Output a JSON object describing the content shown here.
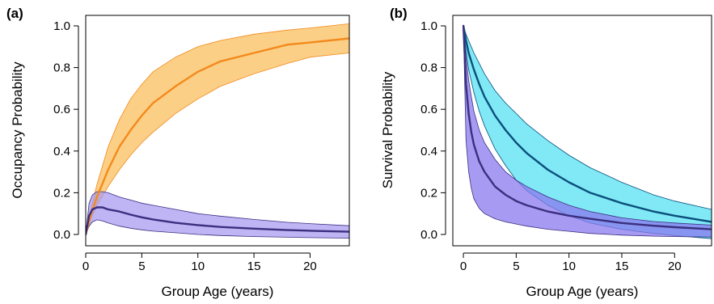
{
  "chart_data": [
    {
      "type": "line",
      "panel_label": "(a)",
      "xlabel": "Group Age (years)",
      "ylabel": "Occupancy Probability",
      "xlim": [
        0,
        23.5
      ],
      "ylim": [
        0,
        1.0
      ],
      "x_ticks": [
        0,
        5,
        10,
        15,
        20
      ],
      "y_ticks": [
        0.0,
        0.2,
        0.4,
        0.6,
        0.8,
        1.0
      ],
      "x_tick_labels": [
        "0",
        "5",
        "10",
        "15",
        "20"
      ],
      "y_tick_labels": [
        "0.0",
        "0.2",
        "0.4",
        "0.6",
        "0.8",
        "1.0"
      ],
      "grid": false,
      "series": [
        {
          "color": "#f28a1c",
          "band_color": "#fbbf5e",
          "x": [
            0,
            0.5,
            1,
            2,
            3,
            4,
            5,
            6,
            8,
            10,
            12,
            15,
            18,
            20,
            23.5
          ],
          "mean": [
            0.0,
            0.1,
            0.18,
            0.31,
            0.42,
            0.5,
            0.57,
            0.63,
            0.71,
            0.78,
            0.83,
            0.87,
            0.91,
            0.92,
            0.94
          ],
          "upper": [
            0.0,
            0.13,
            0.24,
            0.42,
            0.55,
            0.65,
            0.72,
            0.78,
            0.85,
            0.9,
            0.93,
            0.96,
            0.98,
            0.99,
            1.01
          ],
          "lower": [
            0.0,
            0.08,
            0.14,
            0.23,
            0.31,
            0.38,
            0.44,
            0.49,
            0.58,
            0.65,
            0.71,
            0.77,
            0.82,
            0.85,
            0.87
          ]
        },
        {
          "color": "#3b2f7f",
          "band_color": "#a99bf0",
          "x": [
            0,
            0.3,
            0.6,
            1,
            1.5,
            2,
            3,
            4,
            5,
            6,
            8,
            10,
            12,
            15,
            18,
            20,
            23.5
          ],
          "mean": [
            0.0,
            0.09,
            0.12,
            0.13,
            0.13,
            0.12,
            0.11,
            0.095,
            0.082,
            0.072,
            0.056,
            0.045,
            0.036,
            0.028,
            0.021,
            0.018,
            0.013
          ],
          "upper": [
            0.0,
            0.15,
            0.19,
            0.205,
            0.205,
            0.2,
            0.18,
            0.165,
            0.15,
            0.14,
            0.12,
            0.1,
            0.088,
            0.072,
            0.058,
            0.052,
            0.042
          ],
          "lower": [
            0.0,
            0.04,
            0.06,
            0.07,
            0.065,
            0.055,
            0.04,
            0.03,
            0.022,
            0.016,
            0.008,
            0.0,
            -0.005,
            -0.01,
            -0.013,
            -0.015,
            -0.018
          ]
        }
      ]
    },
    {
      "type": "line",
      "panel_label": "(b)",
      "xlabel": "Group Age (years)",
      "ylabel": "Survival Probability",
      "xlim": [
        -1,
        23.5
      ],
      "ylim": [
        0,
        1.0
      ],
      "x_ticks": [
        0,
        5,
        10,
        15,
        20
      ],
      "y_ticks": [
        0.0,
        0.2,
        0.4,
        0.6,
        0.8,
        1.0
      ],
      "x_tick_labels": [
        "0",
        "5",
        "10",
        "15",
        "20"
      ],
      "y_tick_labels": [
        "0.0",
        "0.2",
        "0.4",
        "0.6",
        "0.8",
        "1.0"
      ],
      "grid": false,
      "series": [
        {
          "color": "#0b4f7c",
          "band_color": "#55e2f2",
          "edge_color": "#0b4f7c",
          "x": [
            0,
            0.25,
            0.5,
            1,
            1.5,
            2,
            3,
            4,
            5,
            6,
            8,
            10,
            12,
            15,
            18,
            20,
            23.5
          ],
          "mean": [
            1.0,
            0.93,
            0.87,
            0.79,
            0.72,
            0.66,
            0.57,
            0.5,
            0.44,
            0.39,
            0.31,
            0.25,
            0.2,
            0.15,
            0.11,
            0.09,
            0.06
          ],
          "upper": [
            1.0,
            0.96,
            0.93,
            0.87,
            0.82,
            0.77,
            0.69,
            0.63,
            0.58,
            0.53,
            0.45,
            0.38,
            0.32,
            0.25,
            0.19,
            0.16,
            0.12
          ],
          "lower": [
            1.0,
            0.88,
            0.79,
            0.68,
            0.59,
            0.52,
            0.41,
            0.33,
            0.26,
            0.21,
            0.14,
            0.09,
            0.055,
            0.025,
            0.005,
            -0.005,
            -0.02
          ]
        },
        {
          "color": "#3b2f7f",
          "band_color": "#8a78ee",
          "edge_color": "#3b2f7f",
          "x": [
            0,
            0.25,
            0.5,
            0.75,
            1,
            1.5,
            2,
            3,
            4,
            5,
            6,
            8,
            10,
            12,
            15,
            18,
            20,
            23.5
          ],
          "mean": [
            1.0,
            0.72,
            0.58,
            0.49,
            0.43,
            0.35,
            0.3,
            0.23,
            0.19,
            0.16,
            0.14,
            0.11,
            0.09,
            0.075,
            0.055,
            0.042,
            0.035,
            0.025
          ],
          "upper": [
            1.0,
            0.85,
            0.74,
            0.66,
            0.59,
            0.5,
            0.44,
            0.36,
            0.3,
            0.26,
            0.23,
            0.18,
            0.14,
            0.11,
            0.08,
            0.062,
            0.055,
            0.045
          ],
          "lower": [
            1.0,
            0.45,
            0.3,
            0.22,
            0.17,
            0.125,
            0.1,
            0.075,
            0.06,
            0.05,
            0.04,
            0.025,
            0.015,
            0.005,
            -0.003,
            -0.008,
            -0.01,
            -0.012
          ]
        }
      ]
    }
  ]
}
